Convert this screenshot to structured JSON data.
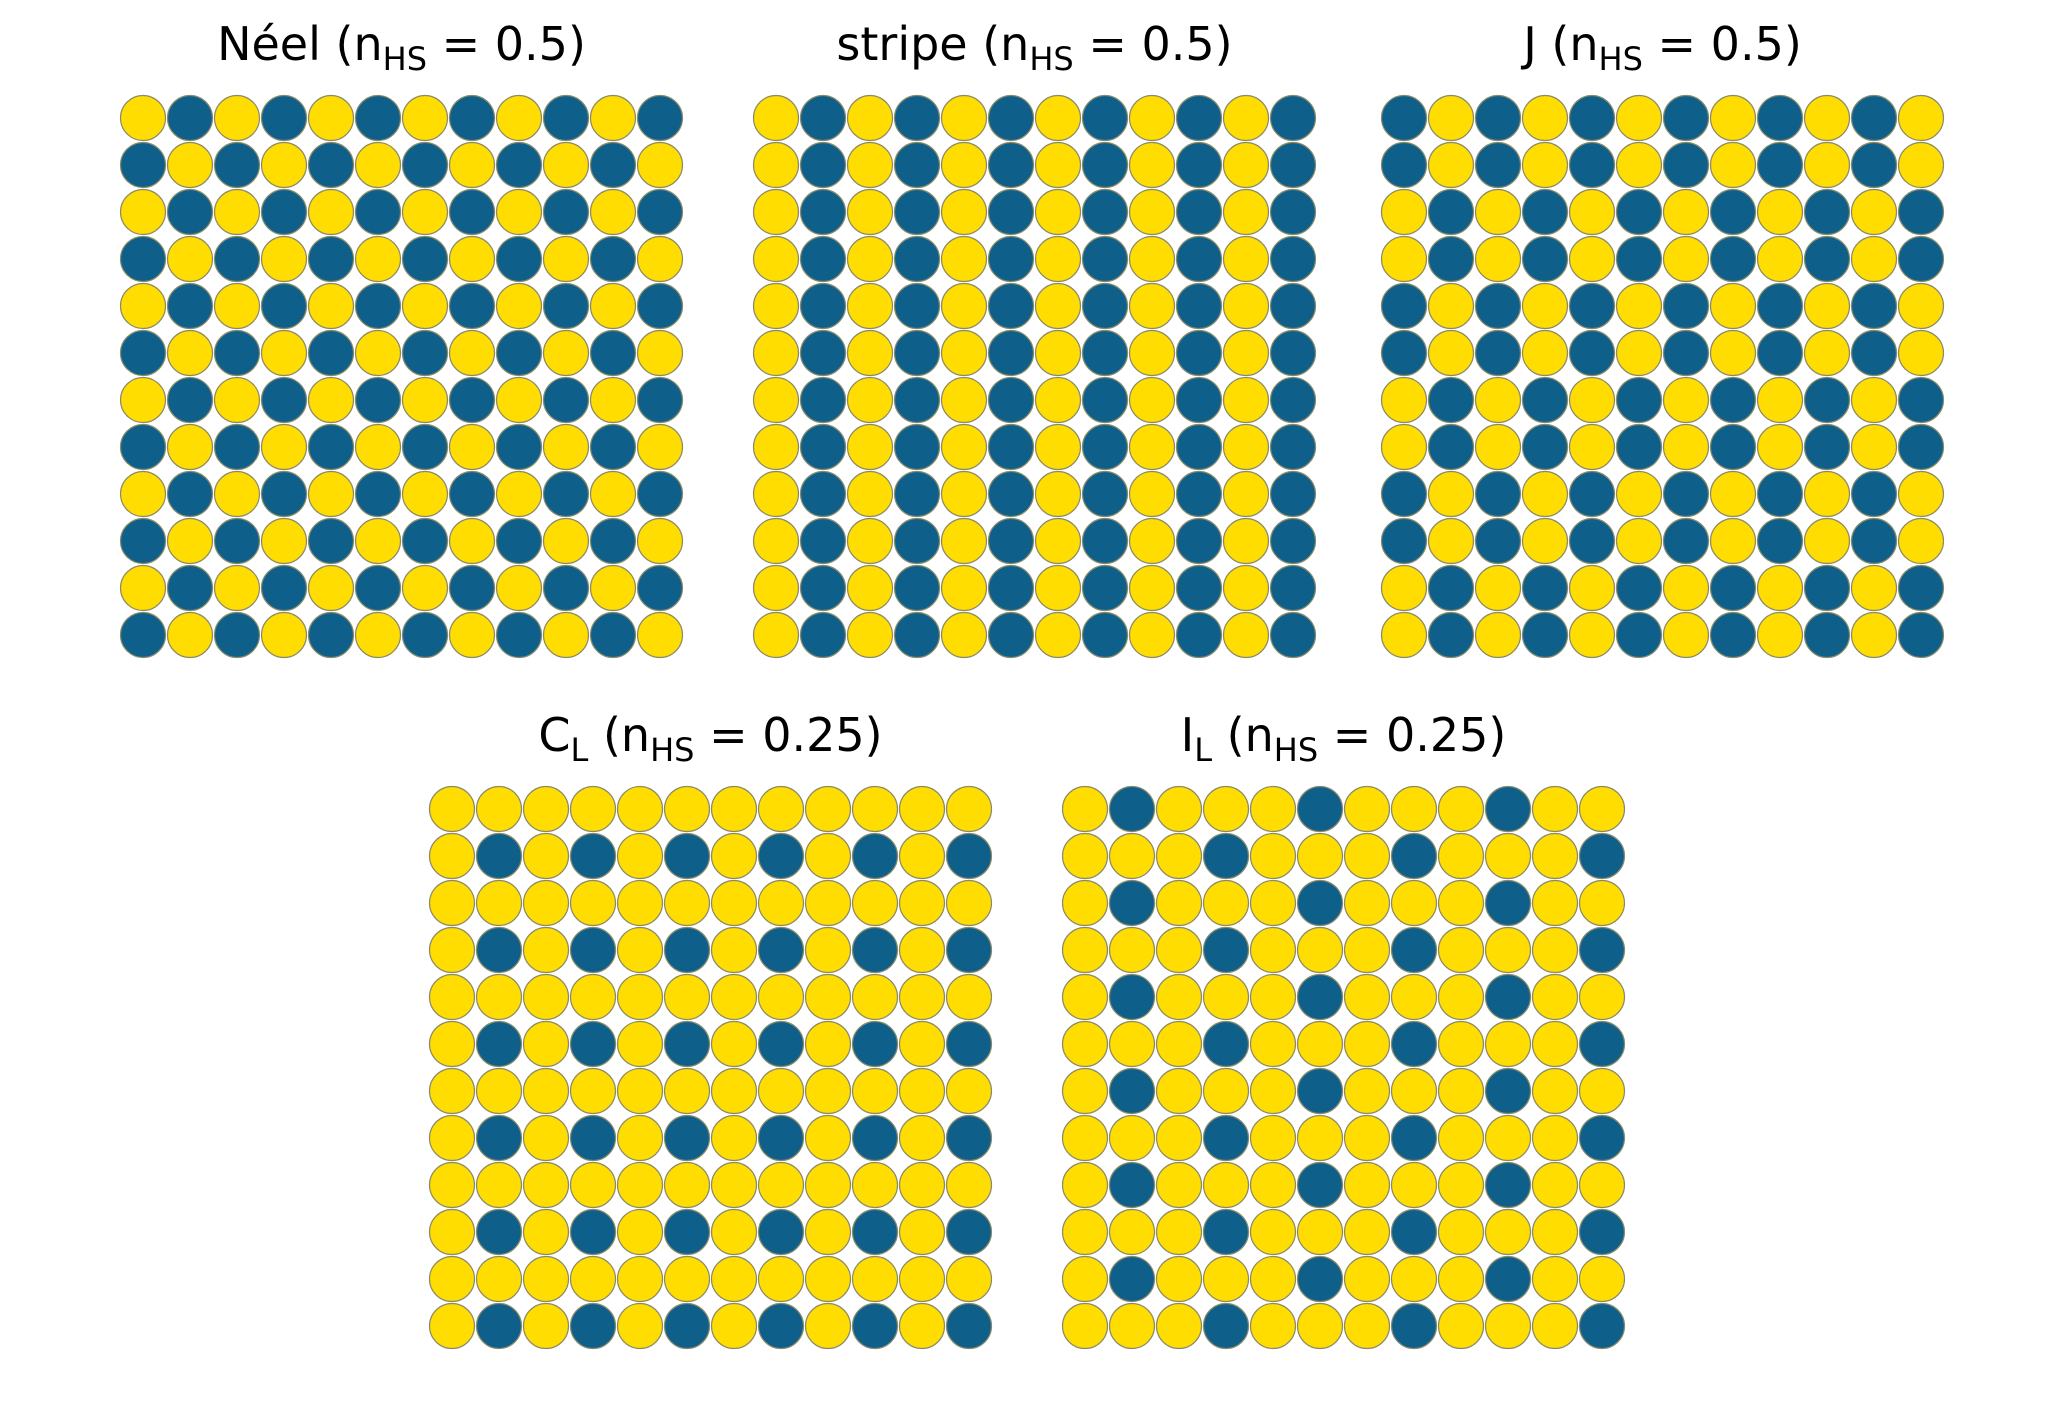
{
  "colors": {
    "high_spin": "#0e5f8a",
    "low_spin": "#ffdd00"
  },
  "panels": [
    {
      "title": [
        {
          "text": "Néel ("
        },
        {
          "text": "n"
        },
        {
          "text": "HS",
          "sub": true
        },
        {
          "text": " = 0.5)"
        }
      ],
      "grid": [
        "010101010101",
        "101010101010",
        "010101010101",
        "101010101010",
        "010101010101",
        "101010101010",
        "010101010101",
        "101010101010",
        "010101010101",
        "101010101010",
        "010101010101",
        "101010101010"
      ]
    },
    {
      "title": [
        {
          "text": "stripe ("
        },
        {
          "text": "n"
        },
        {
          "text": "HS",
          "sub": true
        },
        {
          "text": " = 0.5)"
        }
      ],
      "grid": [
        "010101010101",
        "010101010101",
        "010101010101",
        "010101010101",
        "010101010101",
        "010101010101",
        "010101010101",
        "010101010101",
        "010101010101",
        "010101010101",
        "010101010101",
        "010101010101"
      ]
    },
    {
      "title": [
        {
          "text": "J ("
        },
        {
          "text": "n"
        },
        {
          "text": "HS",
          "sub": true
        },
        {
          "text": " = 0.5)"
        }
      ],
      "grid": [
        "101010101010",
        "101010101010",
        "010101010101",
        "010101010101",
        "101010101010",
        "101010101010",
        "010101010101",
        "010101010101",
        "101010101010",
        "101010101010",
        "010101010101",
        "010101010101"
      ]
    },
    {
      "title": [
        {
          "text": "C"
        },
        {
          "text": "L",
          "sub": true
        },
        {
          "text": " ("
        },
        {
          "text": "n"
        },
        {
          "text": "HS",
          "sub": true
        },
        {
          "text": " = 0.25)"
        }
      ],
      "grid": [
        "000000000000",
        "010101010101",
        "000000000000",
        "010101010101",
        "000000000000",
        "010101010101",
        "000000000000",
        "010101010101",
        "000000000000",
        "010101010101",
        "000000000000",
        "010101010101"
      ]
    },
    {
      "title": [
        {
          "text": "I"
        },
        {
          "text": "L",
          "sub": true
        },
        {
          "text": " ("
        },
        {
          "text": "n"
        },
        {
          "text": "HS",
          "sub": true
        },
        {
          "text": " = 0.25)"
        }
      ],
      "grid": [
        "010001000100",
        "000100010001",
        "010001000100",
        "000100010001",
        "010001000100",
        "000100010001",
        "010001000100",
        "000100010001",
        "010001000100",
        "000100010001",
        "010001000100",
        "000100010001"
      ]
    }
  ]
}
